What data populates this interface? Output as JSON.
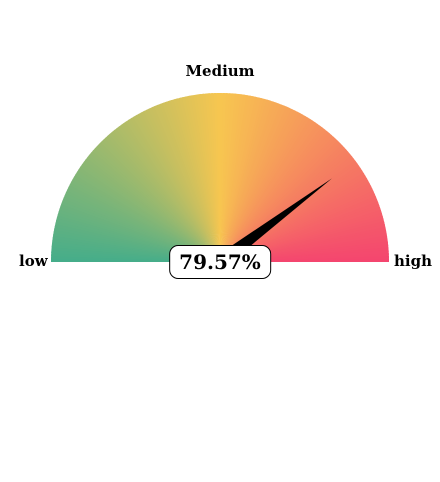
{
  "chart_data": {
    "type": "gauge",
    "value": 79.57,
    "value_label": "79.57%",
    "range": [
      0,
      100
    ],
    "labels": {
      "low": "low",
      "mid": "Medium",
      "high": "high"
    },
    "colors": {
      "low": "#45ad8a",
      "mid": "#f7c650",
      "high": "#f4456f",
      "needle": "#000000"
    }
  }
}
